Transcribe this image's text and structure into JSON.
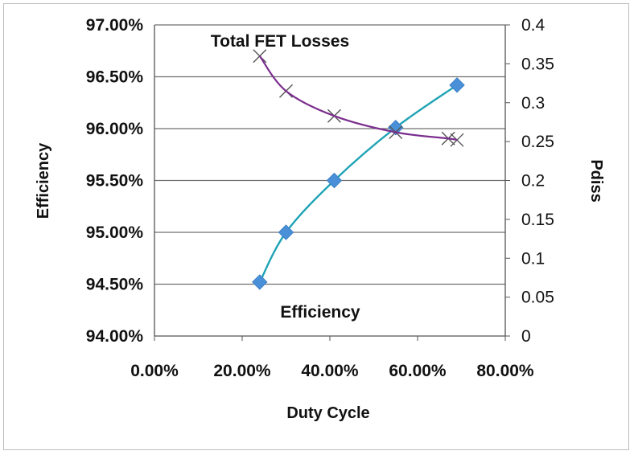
{
  "chart_data": {
    "type": "line",
    "xlabel": "Duty Cycle",
    "ylabel_left": "Efficiency",
    "ylabel_right": "Pdiss",
    "x_ticks": [
      "0.00%",
      "20.00%",
      "40.00%",
      "60.00%",
      "80.00%"
    ],
    "xlim": [
      0,
      0.8
    ],
    "y_left_ticks": [
      "94.00%",
      "94.50%",
      "95.00%",
      "95.50%",
      "96.00%",
      "96.50%",
      "97.00%"
    ],
    "y_left_lim": [
      0.94,
      0.97
    ],
    "y_right_ticks": [
      "0",
      "0.05",
      "0.1",
      "0.15",
      "0.2",
      "0.25",
      "0.3",
      "0.35",
      "0.4"
    ],
    "y_right_lim": [
      0,
      0.4
    ],
    "grid": true,
    "annotations": [
      "Total FET Losses",
      "Efficiency"
    ],
    "series": [
      {
        "axis": "left",
        "marker": "diamond",
        "color": "#4a90d9",
        "line_color": "#1fa3b5",
        "x": [
          0.24,
          0.3,
          0.41,
          0.55,
          0.69
        ],
        "y": [
          0.9452,
          0.95,
          0.955,
          0.9601,
          0.9642
        ]
      },
      {
        "axis": "right",
        "marker": "x",
        "color": "#555555",
        "line_color": "#7b2f8e",
        "x": [
          0.24,
          0.3,
          0.41,
          0.55,
          0.67,
          0.69
        ],
        "y": [
          0.36,
          0.315,
          0.283,
          0.262,
          0.254,
          0.252
        ]
      }
    ]
  }
}
